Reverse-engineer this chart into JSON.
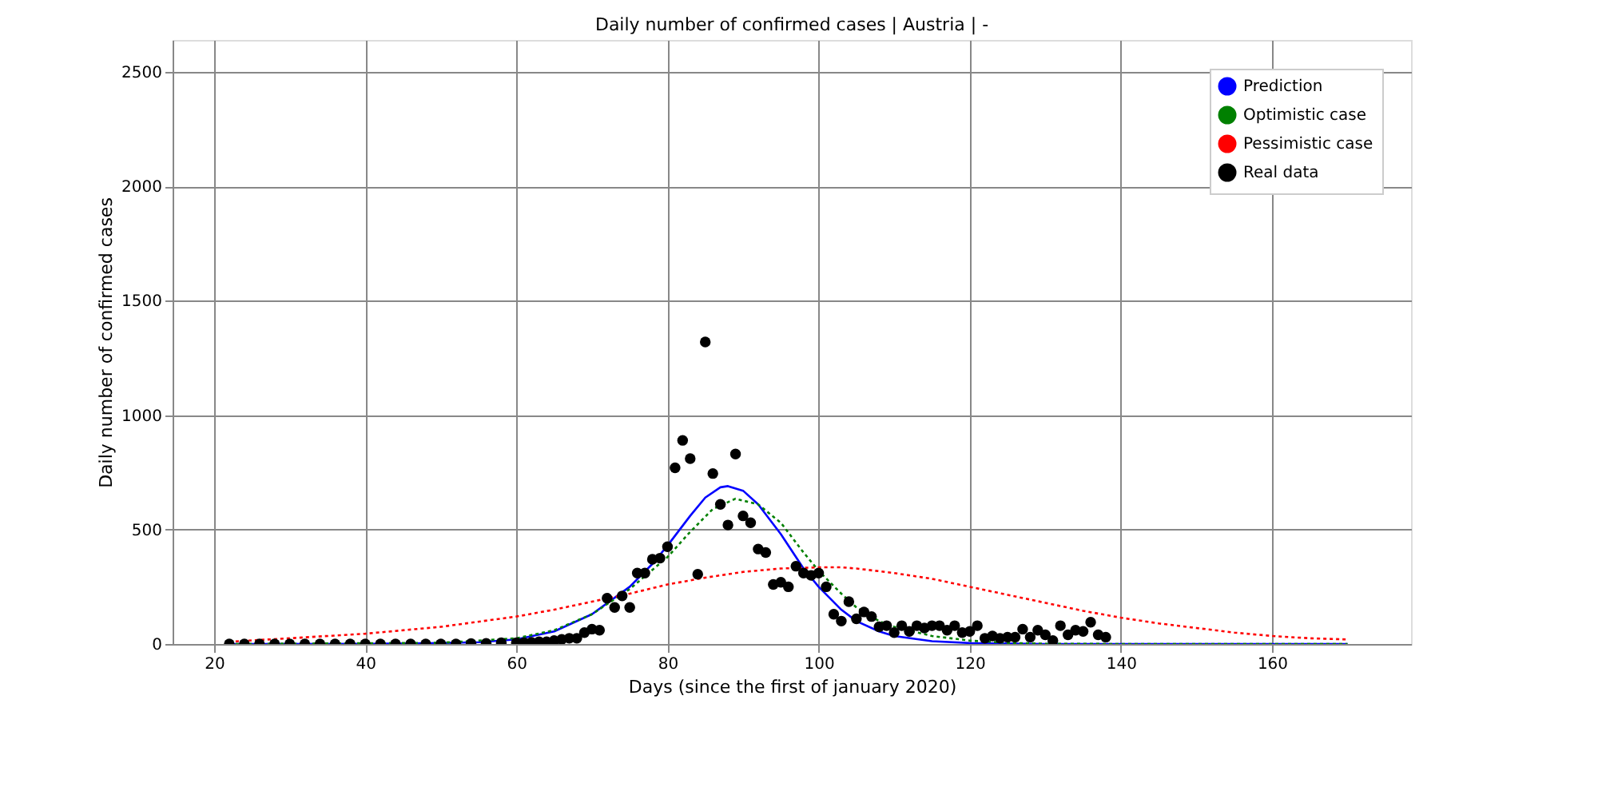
{
  "chart_data": {
    "type": "line",
    "title": "Daily number of confirmed cases | Austria | -",
    "xlabel": "Days (since the first of january 2020)",
    "ylabel": "Daily number of confirmed cases",
    "xlim": [
      14.5,
      178.4
    ],
    "ylim": [
      0,
      2640
    ],
    "xticks": [
      20,
      40,
      60,
      80,
      100,
      120,
      140,
      160
    ],
    "yticks": [
      0,
      500,
      1000,
      1500,
      2000,
      2500
    ],
    "grid": true,
    "legend": "top right",
    "series": [
      {
        "name": "Prediction",
        "line_style": "solid",
        "color": "#0000ff",
        "x": [
          22,
          40,
          50,
          55,
          60,
          65,
          70,
          75,
          78,
          80,
          83,
          85,
          87,
          88,
          90,
          92,
          95,
          98,
          100,
          103,
          105,
          108,
          110,
          115,
          120,
          130,
          140,
          170
        ],
        "values": [
          0,
          1,
          4,
          8,
          20,
          55,
          130,
          250,
          350,
          430,
          560,
          640,
          685,
          690,
          670,
          610,
          480,
          330,
          250,
          150,
          100,
          55,
          35,
          12,
          4,
          0,
          0,
          0
        ]
      },
      {
        "name": "Optimistic case",
        "line_style": "dotted",
        "color": "#008000",
        "x": [
          22,
          50,
          60,
          65,
          70,
          75,
          80,
          83,
          86,
          89,
          92,
          95,
          98,
          100,
          103,
          105,
          108,
          110,
          115,
          120,
          125,
          130,
          140,
          170
        ],
        "values": [
          0,
          5,
          25,
          60,
          130,
          240,
          380,
          490,
          590,
          635,
          610,
          530,
          400,
          320,
          220,
          160,
          100,
          75,
          35,
          15,
          5,
          1,
          0,
          0
        ]
      },
      {
        "name": "Pessimistic case",
        "line_style": "dotted",
        "color": "#ff0000",
        "x": [
          22,
          30,
          40,
          50,
          60,
          65,
          70,
          75,
          80,
          85,
          90,
          95,
          100,
          103,
          105,
          110,
          115,
          120,
          125,
          130,
          135,
          140,
          145,
          150,
          155,
          160,
          165,
          170
        ],
        "values": [
          10,
          25,
          45,
          75,
          120,
          150,
          185,
          220,
          260,
          290,
          315,
          330,
          335,
          335,
          330,
          310,
          285,
          250,
          215,
          180,
          145,
          115,
          90,
          70,
          50,
          35,
          25,
          20
        ]
      },
      {
        "name": "Real data",
        "type": "scatter",
        "marker": "circle",
        "color": "#000000",
        "x": [
          22,
          24,
          26,
          28,
          30,
          32,
          34,
          36,
          38,
          40,
          42,
          44,
          46,
          48,
          50,
          52,
          54,
          56,
          58,
          60,
          61,
          62,
          63,
          64,
          65,
          66,
          67,
          68,
          69,
          70,
          71,
          72,
          73,
          74,
          75,
          76,
          77,
          78,
          79,
          80,
          81,
          82,
          83,
          84,
          85,
          86,
          87,
          88,
          89,
          90,
          91,
          92,
          93,
          94,
          95,
          96,
          97,
          98,
          99,
          100,
          101,
          102,
          103,
          104,
          105,
          106,
          107,
          108,
          109,
          110,
          111,
          112,
          113,
          114,
          115,
          116,
          117,
          118,
          119,
          120,
          121,
          122,
          123,
          124,
          125,
          126,
          127,
          128,
          129,
          130,
          131,
          132,
          133,
          134,
          135,
          136,
          137,
          138
        ],
        "values": [
          0,
          0,
          0,
          0,
          0,
          0,
          0,
          0,
          0,
          0,
          0,
          0,
          0,
          0,
          0,
          0,
          2,
          3,
          5,
          5,
          5,
          7,
          10,
          10,
          15,
          20,
          25,
          25,
          50,
          65,
          60,
          200,
          160,
          210,
          160,
          310,
          310,
          370,
          375,
          425,
          770,
          890,
          810,
          305,
          1320,
          745,
          610,
          520,
          830,
          560,
          530,
          415,
          400,
          260,
          270,
          250,
          340,
          310,
          300,
          310,
          250,
          130,
          100,
          185,
          110,
          140,
          120,
          75,
          80,
          50,
          80,
          55,
          80,
          70,
          80,
          80,
          60,
          80,
          50,
          55,
          80,
          25,
          35,
          25,
          30,
          30,
          65,
          30,
          60,
          40,
          15,
          80,
          40,
          60,
          55,
          95,
          40,
          30
        ]
      }
    ]
  }
}
